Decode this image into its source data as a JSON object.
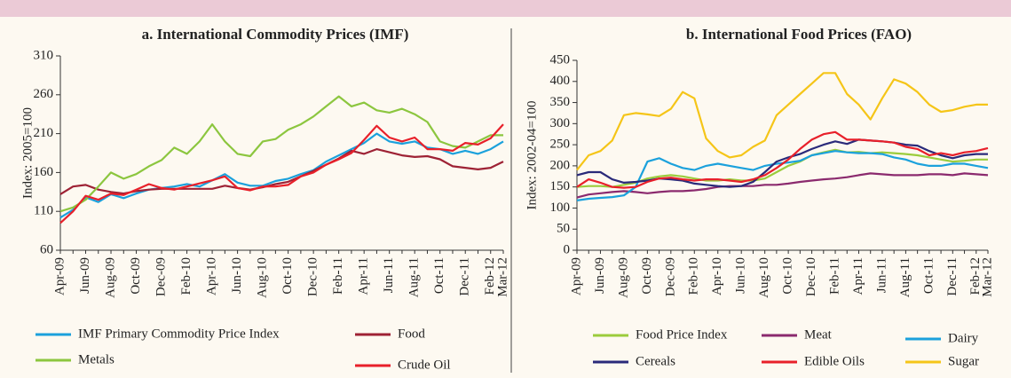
{
  "chart_data": [
    {
      "type": "line",
      "title": "a. International Commodity Prices (IMF)",
      "y_label": "Index: 2005=100",
      "categories": [
        "Apr-09",
        null,
        "Jun-09",
        null,
        "Aug-09",
        null,
        "Oct-09",
        null,
        "Dec-09",
        null,
        "Feb-10",
        null,
        "Apr-10",
        null,
        "Jun-10",
        null,
        "Aug-10",
        null,
        "Oct-10",
        null,
        "Dec-10",
        null,
        "Feb-11",
        null,
        "Apr-11",
        null,
        "Jun-11",
        null,
        "Aug-11",
        null,
        "Oct-11",
        null,
        "Dec-11",
        null,
        "Feb-12",
        "Mar-12"
      ],
      "ylim": [
        60,
        310
      ],
      "yticks": [
        60,
        110,
        160,
        210,
        260,
        310
      ],
      "series": [
        {
          "name": "IMF Primary Commodity Price Index",
          "color": "#1ba1dc",
          "values": [
            102,
            112,
            128,
            122,
            132,
            127,
            133,
            138,
            140,
            142,
            145,
            142,
            150,
            158,
            147,
            143,
            143,
            149,
            152,
            158,
            163,
            174,
            182,
            190,
            198,
            210,
            200,
            197,
            200,
            192,
            190,
            184,
            188,
            184,
            190,
            200
          ]
        },
        {
          "name": "Food",
          "color": "#9e2235",
          "values": [
            132,
            142,
            144,
            138,
            135,
            133,
            136,
            138,
            139,
            139,
            139,
            139,
            139,
            143,
            140,
            138,
            141,
            145,
            148,
            155,
            162,
            170,
            178,
            188,
            184,
            190,
            186,
            182,
            180,
            181,
            177,
            168,
            166,
            164,
            166,
            174
          ]
        },
        {
          "name": "Metals",
          "color": "#8cc63f",
          "values": [
            110,
            115,
            125,
            142,
            160,
            152,
            158,
            168,
            176,
            192,
            184,
            200,
            222,
            200,
            184,
            181,
            200,
            203,
            215,
            222,
            232,
            245,
            258,
            245,
            250,
            240,
            237,
            242,
            235,
            225,
            200,
            194,
            192,
            200,
            208,
            208
          ]
        },
        {
          "name": "Crude Oil",
          "color": "#e8202a",
          "values": [
            95,
            110,
            130,
            125,
            133,
            131,
            138,
            145,
            140,
            138,
            142,
            146,
            150,
            155,
            140,
            137,
            142,
            142,
            144,
            155,
            160,
            170,
            177,
            185,
            202,
            220,
            205,
            200,
            205,
            190,
            190,
            188,
            198,
            196,
            204,
            222
          ]
        }
      ]
    },
    {
      "type": "line",
      "title": "b. International Food Prices (FAO)",
      "y_label": "Index: 2002-04=100",
      "categories": [
        "Apr-09",
        null,
        "Jun-09",
        null,
        "Aug-09",
        null,
        "Oct-09",
        null,
        "Dec-09",
        null,
        "Feb-10",
        null,
        "Apr-10",
        null,
        "Jun-10",
        null,
        "Aug-10",
        null,
        "Oct-10",
        null,
        "Dec-10",
        null,
        "Feb-11",
        null,
        "Apr-11",
        null,
        "Jun-11",
        null,
        "Aug-11",
        null,
        "Oct-11",
        null,
        "Dec-11",
        null,
        "Feb-12",
        "Mar-12"
      ],
      "ylim": [
        0,
        450
      ],
      "yticks": [
        0,
        50,
        100,
        150,
        200,
        250,
        300,
        350,
        400,
        450
      ],
      "series": [
        {
          "name": "Food Price Index",
          "color": "#9bcc3c",
          "values": [
            150,
            152,
            152,
            150,
            155,
            160,
            170,
            175,
            178,
            175,
            170,
            165,
            165,
            168,
            165,
            165,
            170,
            185,
            200,
            210,
            225,
            232,
            238,
            232,
            233,
            230,
            232,
            230,
            228,
            225,
            220,
            215,
            210,
            212,
            215,
            215
          ]
        },
        {
          "name": "Meat",
          "color": "#8b2a6e",
          "values": [
            125,
            132,
            135,
            138,
            140,
            138,
            135,
            138,
            140,
            140,
            142,
            145,
            150,
            152,
            152,
            152,
            155,
            155,
            158,
            162,
            165,
            168,
            170,
            173,
            178,
            182,
            180,
            178,
            178,
            178,
            180,
            180,
            178,
            182,
            180,
            178
          ]
        },
        {
          "name": "Dairy",
          "color": "#1ba1dc",
          "values": [
            118,
            122,
            124,
            126,
            130,
            150,
            210,
            218,
            205,
            195,
            190,
            200,
            205,
            200,
            195,
            190,
            200,
            205,
            208,
            212,
            225,
            230,
            235,
            232,
            230,
            230,
            228,
            220,
            215,
            205,
            200,
            200,
            205,
            205,
            200,
            195
          ]
        },
        {
          "name": "Cereals",
          "color": "#2a2a7a",
          "values": [
            178,
            185,
            185,
            168,
            160,
            162,
            165,
            170,
            168,
            165,
            158,
            155,
            152,
            150,
            152,
            162,
            185,
            210,
            220,
            228,
            240,
            250,
            258,
            252,
            262,
            260,
            258,
            255,
            250,
            248,
            235,
            225,
            218,
            225,
            228,
            228
          ]
        },
        {
          "name": "Edible Oils",
          "color": "#e8202a",
          "values": [
            150,
            168,
            160,
            150,
            148,
            150,
            162,
            170,
            172,
            168,
            165,
            168,
            168,
            165,
            162,
            168,
            178,
            195,
            215,
            240,
            262,
            275,
            280,
            262,
            262,
            260,
            258,
            255,
            245,
            240,
            225,
            230,
            225,
            232,
            235,
            242
          ]
        },
        {
          "name": "Sugar",
          "color": "#f5c518",
          "values": [
            190,
            225,
            235,
            260,
            320,
            325,
            322,
            318,
            335,
            375,
            360,
            265,
            235,
            220,
            225,
            245,
            260,
            320,
            345,
            370,
            395,
            420,
            420,
            370,
            345,
            310,
            360,
            405,
            395,
            375,
            345,
            328,
            332,
            340,
            345,
            345
          ]
        }
      ]
    }
  ]
}
